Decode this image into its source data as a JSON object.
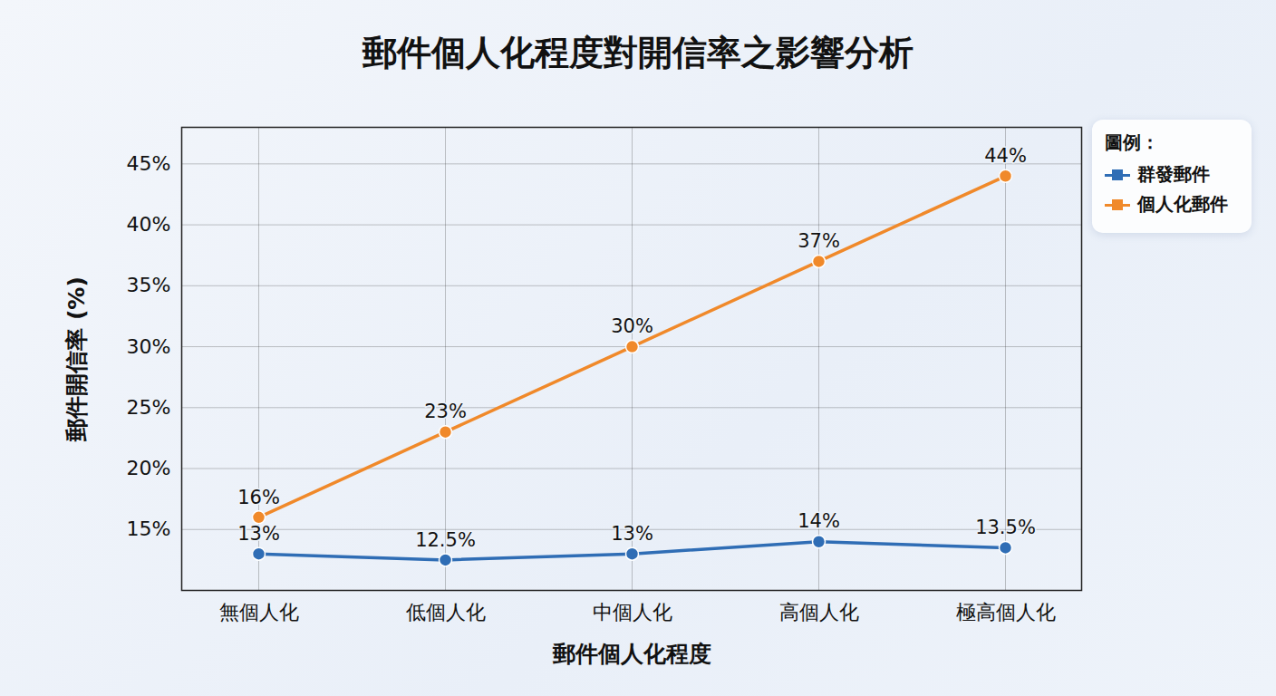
{
  "chart_data": {
    "type": "line",
    "title": "郵件個人化程度對開信率之影響分析",
    "x_label": "郵件個人化程度",
    "y_label": "郵件開信率 (%)",
    "legend_title": "圖例：",
    "categories": [
      "無個人化",
      "低個人化",
      "中個人化",
      "高個人化",
      "極高個人化"
    ],
    "series": [
      {
        "name": "群發郵件",
        "color": "#2f6db5",
        "marker": "circle",
        "values": [
          13,
          12.5,
          13,
          14,
          13.5
        ],
        "value_labels": [
          "13%",
          "12.5%",
          "13%",
          "14%",
          "13.5%"
        ]
      },
      {
        "name": "個人化郵件",
        "color": "#f0892a",
        "marker": "circle",
        "values": [
          16,
          23,
          30,
          37,
          44
        ],
        "value_labels": [
          "16%",
          "23%",
          "30%",
          "37%",
          "44%"
        ]
      }
    ],
    "ylim": [
      10,
      48
    ],
    "yticks": [
      {
        "value": 15,
        "label": "15%"
      },
      {
        "value": 20,
        "label": "20%"
      },
      {
        "value": 25,
        "label": "25%"
      },
      {
        "value": 30,
        "label": "30%"
      },
      {
        "value": 35,
        "label": "35%"
      },
      {
        "value": 40,
        "label": "40%"
      },
      {
        "value": 45,
        "label": "45%"
      }
    ],
    "grid": true,
    "legend": "right",
    "data_labels": true
  }
}
